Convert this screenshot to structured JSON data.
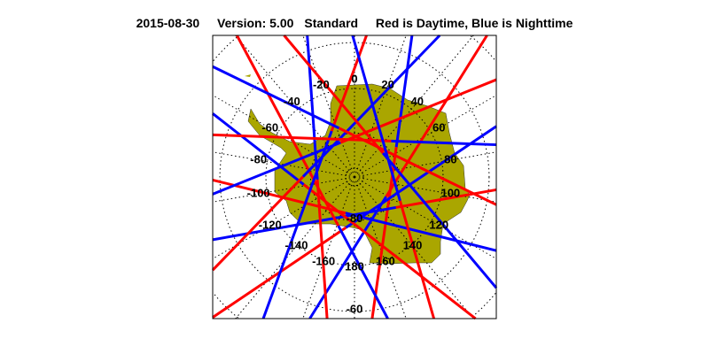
{
  "header": {
    "date": "2015-08-30",
    "version": "Version: 5.00",
    "product": "Standard",
    "legend": "Red is Daytime, Blue is Nighttime"
  },
  "map": {
    "projection": "south polar stereographic",
    "longitude_labels": [
      "0",
      "20",
      "40",
      "60",
      "80",
      "100",
      "120",
      "140",
      "160",
      "180",
      "-160",
      "-140",
      "-120",
      "-100",
      "-80",
      "-60",
      "-40",
      "-20"
    ],
    "longitude_values": [
      0,
      20,
      40,
      60,
      80,
      100,
      120,
      140,
      160,
      180,
      -160,
      -140,
      -120,
      -100,
      -80,
      -60,
      -40,
      -20
    ],
    "latitude_labels": [
      "-80",
      "-60"
    ],
    "colors": {
      "land": "#aaa600",
      "day": "#ff0000",
      "night": "#0000ff",
      "grid": "#000000"
    }
  }
}
